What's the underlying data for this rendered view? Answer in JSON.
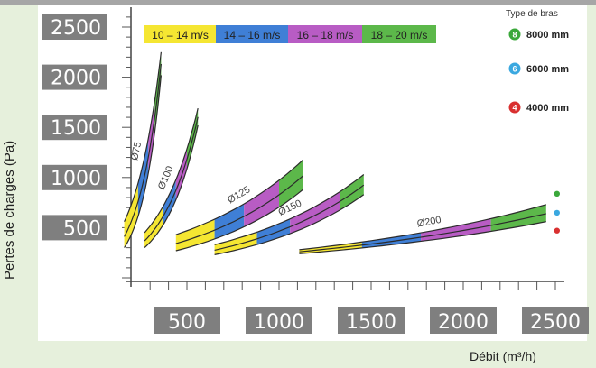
{
  "chart_data": {
    "type": "line",
    "title": "",
    "xlabel": "Débit (m³/h)",
    "ylabel": "Pertes de charges (Pa)",
    "xlim": [
      0,
      2600
    ],
    "ylim": [
      0,
      2600
    ],
    "x_ticks": [
      500,
      1000,
      1500,
      2000,
      2500
    ],
    "y_ticks": [
      500,
      1000,
      1500,
      2000,
      2500
    ],
    "grid": false,
    "legend_placement": "top-left",
    "velocity_bands": [
      {
        "label": "10 – 14 m/s",
        "color": "#f5e632"
      },
      {
        "label": "14 – 16 m/s",
        "color": "#3f7fd6"
      },
      {
        "label": "16 – 18 m/s",
        "color": "#b85cc4"
      },
      {
        "label": "18 – 20 m/s",
        "color": "#5cb84a"
      }
    ],
    "arm_types": {
      "title": "Type de bras",
      "items": [
        {
          "badge": "8",
          "label": "8000 mm",
          "color": "#3aa83a"
        },
        {
          "badge": "6",
          "label": "6000 mm",
          "color": "#3aa8e0"
        },
        {
          "badge": "4",
          "label": "4000 mm",
          "color": "#d93030"
        }
      ]
    },
    "series": [
      {
        "name": "Ø75",
        "x": [
          160,
          360
        ],
        "y_4000": [
          300,
          2020
        ],
        "y_8000": [
          560,
          2250
        ],
        "breaks": [
          235,
          290,
          325
        ]
      },
      {
        "name": "Ø100",
        "x": [
          270,
          560
        ],
        "y_4000": [
          300,
          1520
        ],
        "y_8000": [
          450,
          1690
        ],
        "breaks": [
          370,
          440,
          500
        ]
      },
      {
        "name": "Ø125",
        "x": [
          440,
          1130
        ],
        "y_4000": [
          270,
          880
        ],
        "y_8000": [
          430,
          1175
        ],
        "breaks": [
          650,
          810,
          1000
        ]
      },
      {
        "name": "Ø150",
        "x": [
          650,
          1460
        ],
        "y_4000": [
          230,
          830
        ],
        "y_8000": [
          330,
          1030
        ],
        "breaks": [
          880,
          1060,
          1330
        ]
      },
      {
        "name": "Ø200",
        "x": [
          1110,
          2450
        ],
        "y_4000": [
          240,
          560
        ],
        "y_8000": [
          280,
          730
        ],
        "breaks": [
          1450,
          1770,
          2150
        ]
      }
    ]
  }
}
